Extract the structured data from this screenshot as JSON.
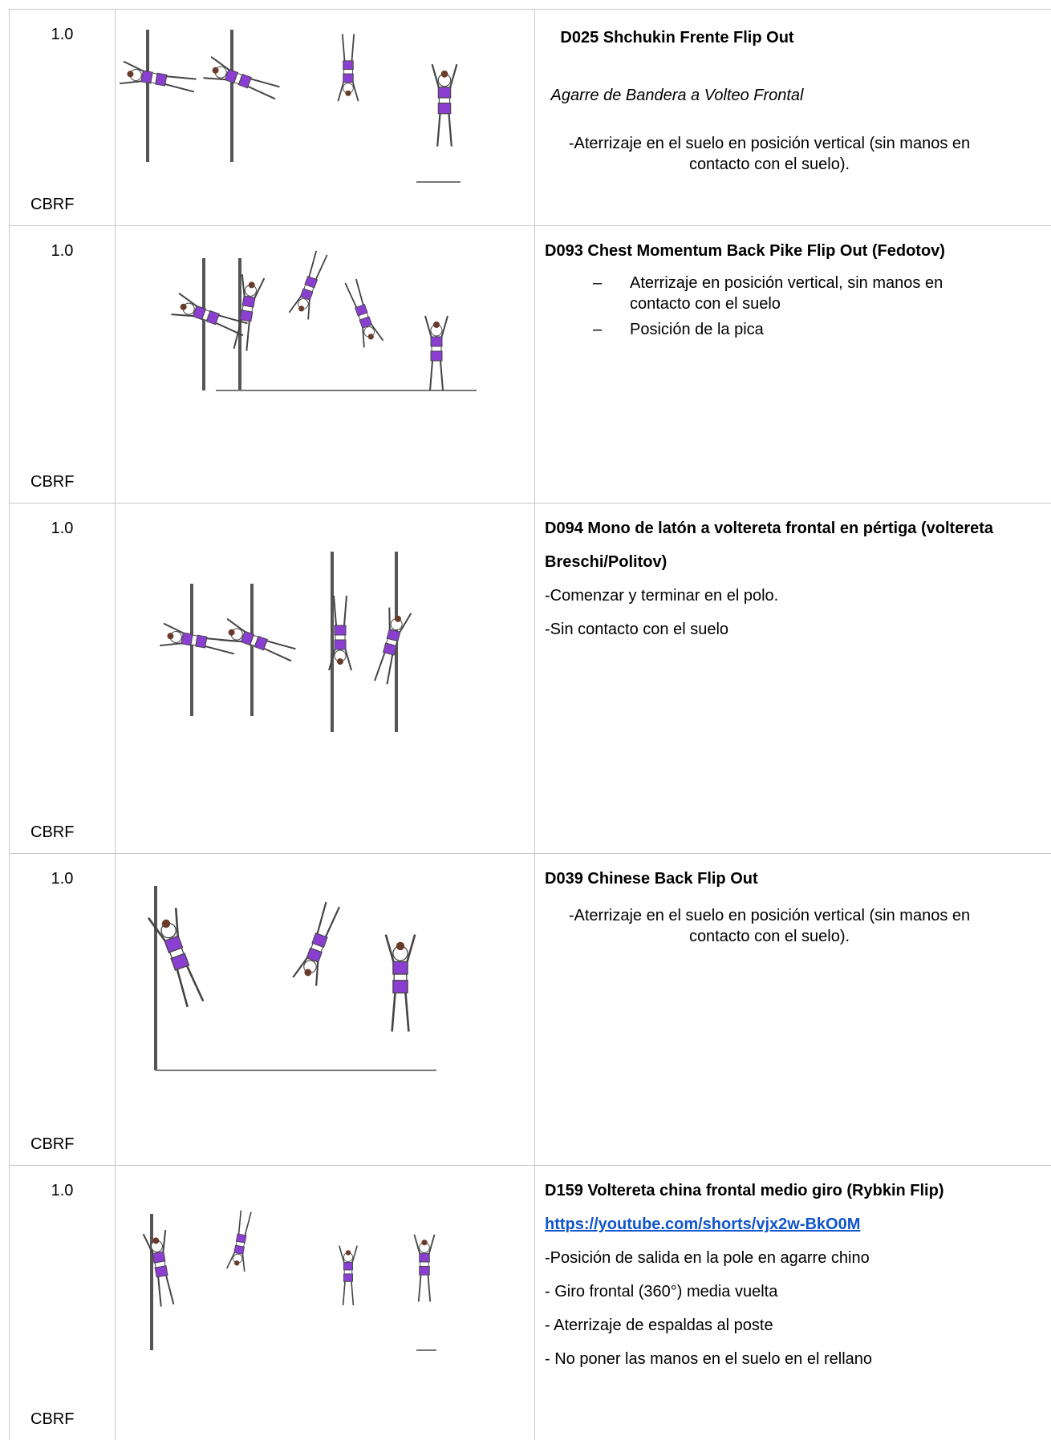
{
  "table": {
    "rows": [
      {
        "value": "1.0",
        "category": "CBRF",
        "title": "D025 Shchukin Frente Flip Out",
        "subtitle": "Agarre de Bandera a Volteo Frontal",
        "notes": [
          "-Aterrizaje en el suelo en posición vertical (sin manos en contacto con el suelo)."
        ]
      },
      {
        "value": "1.0",
        "category": "CBRF",
        "title": "D093 Chest Momentum Back Pike Flip Out (Fedotov)",
        "bullets": [
          "Aterrizaje en posición vertical, sin manos en contacto con el suelo",
          "Posición de la pica"
        ]
      },
      {
        "value": "1.0",
        "category": "CBRF",
        "title": "D094 Mono de latón a voltereta frontal en pértiga (voltereta Breschi/Politov)",
        "notes": [
          "-Comenzar y terminar en el polo.",
          "-Sin contacto con el suelo"
        ]
      },
      {
        "value": "1.0",
        "category": "CBRF",
        "title": "D039 Chinese Back Flip Out",
        "notes": [
          "-Aterrizaje en el suelo en posición vertical (sin manos en contacto con el suelo)."
        ]
      },
      {
        "value": "1.0",
        "category": "CBRF",
        "title": "D159 Voltereta china frontal medio giro (Rybkin Flip)",
        "link": "https://youtube.com/shorts/vjx2w-BkO0M",
        "notes": [
          "-Posición de salida en la pole en agarre chino",
          "- Giro frontal (360°) media vuelta",
          "- Aterrizaje de espaldas al poste",
          "- No poner las manos en el suelo en el rellano"
        ]
      }
    ]
  }
}
